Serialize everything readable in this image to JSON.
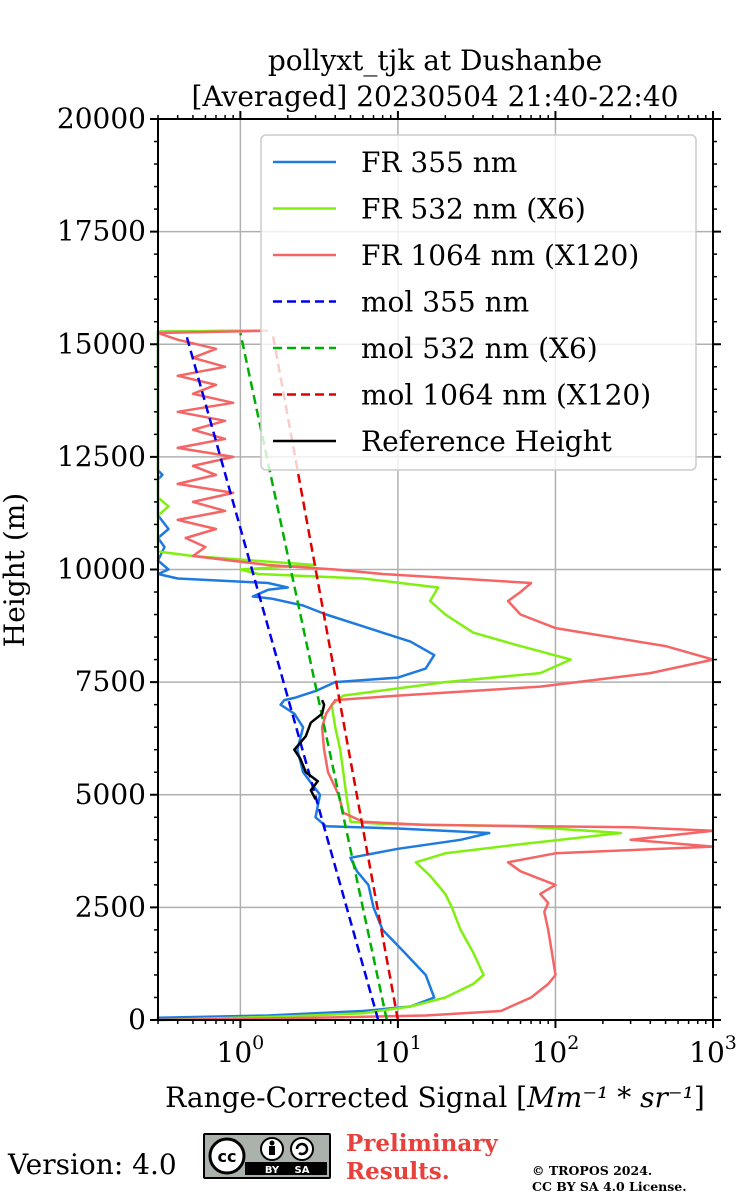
{
  "chart_data": {
    "type": "line",
    "title_line1": "pollyxt_tjk at Dushanbe",
    "title_line2": "[Averaged] 20230504 21:40-22:40",
    "xlabel_text": "Range-Corrected Signal [",
    "xlabel_math": "Mm⁻¹ * sr⁻¹",
    "xlabel_end": "]",
    "ylabel": "Height (m)",
    "xscale": "log",
    "xlim": [
      0.3,
      1000
    ],
    "ylim": [
      0,
      20000
    ],
    "x_tick_labels": [
      {
        "value": 1,
        "base": "10",
        "exp": "0"
      },
      {
        "value": 10,
        "base": "10",
        "exp": "1"
      },
      {
        "value": 100,
        "base": "10",
        "exp": "2"
      },
      {
        "value": 1000,
        "base": "10",
        "exp": "3"
      }
    ],
    "y_ticks": [
      0,
      2500,
      5000,
      7500,
      10000,
      12500,
      15000,
      17500,
      20000
    ],
    "grid": true,
    "legend_position": "top-right",
    "series": [
      {
        "name": "FR 355 nm",
        "color": "#1f7ae0",
        "dash": "solid",
        "points": [
          [
            0.3,
            0
          ],
          [
            0.3,
            50
          ],
          [
            1.5,
            100
          ],
          [
            6,
            200
          ],
          [
            12,
            300
          ],
          [
            17,
            500
          ],
          [
            15,
            1000
          ],
          [
            11,
            1500
          ],
          [
            8,
            2000
          ],
          [
            7,
            2500
          ],
          [
            6.5,
            3000
          ],
          [
            5.5,
            3300
          ],
          [
            5,
            3600
          ],
          [
            10,
            3800
          ],
          [
            25,
            4000
          ],
          [
            38,
            4150
          ],
          [
            10,
            4250
          ],
          [
            3.5,
            4300
          ],
          [
            3,
            4500
          ],
          [
            3.2,
            5000
          ],
          [
            2.5,
            5500
          ],
          [
            2.3,
            6000
          ],
          [
            2.5,
            6500
          ],
          [
            2.2,
            6800
          ],
          [
            1.8,
            7000
          ],
          [
            1.9,
            7100
          ],
          [
            2.2,
            7150
          ],
          [
            3,
            7300
          ],
          [
            4,
            7500
          ],
          [
            10,
            7600
          ],
          [
            15,
            7800
          ],
          [
            17,
            8100
          ],
          [
            12,
            8400
          ],
          [
            6.5,
            8700
          ],
          [
            3.5,
            9000
          ],
          [
            2.5,
            9200
          ],
          [
            1.6,
            9350
          ],
          [
            1.2,
            9400
          ],
          [
            1.5,
            9550
          ],
          [
            2,
            9600
          ],
          [
            1.5,
            9700
          ],
          [
            0.4,
            9800
          ],
          [
            0.3,
            9900
          ],
          [
            0.35,
            10000
          ],
          [
            0.3,
            10200
          ],
          [
            0.33,
            10500
          ],
          [
            0.3,
            10700
          ],
          [
            0.35,
            10900
          ],
          [
            0.3,
            11200
          ],
          [
            0.3,
            12000
          ],
          [
            0.32,
            12100
          ],
          [
            0.3,
            12200
          ],
          [
            0.3,
            15280
          ],
          [
            1.5,
            15300
          ]
        ]
      },
      {
        "name": "FR 532 nm (X6)",
        "color": "#80f010",
        "dash": "solid",
        "points": [
          [
            0.3,
            0
          ],
          [
            2,
            80
          ],
          [
            6,
            150
          ],
          [
            12,
            300
          ],
          [
            20,
            500
          ],
          [
            30,
            800
          ],
          [
            35,
            1000
          ],
          [
            30,
            1500
          ],
          [
            25,
            2000
          ],
          [
            22,
            2500
          ],
          [
            20,
            2800
          ],
          [
            16,
            3200
          ],
          [
            13,
            3500
          ],
          [
            20,
            3700
          ],
          [
            60,
            3900
          ],
          [
            260,
            4150
          ],
          [
            60,
            4300
          ],
          [
            8,
            4350
          ],
          [
            5,
            4400
          ],
          [
            4.7,
            5000
          ],
          [
            4.5,
            5500
          ],
          [
            4.3,
            6000
          ],
          [
            4,
            6500
          ],
          [
            3.8,
            7000
          ],
          [
            4.5,
            7200
          ],
          [
            20,
            7500
          ],
          [
            80,
            7700
          ],
          [
            125,
            8000
          ],
          [
            60,
            8300
          ],
          [
            30,
            8600
          ],
          [
            20,
            9000
          ],
          [
            16,
            9300
          ],
          [
            18,
            9600
          ],
          [
            6,
            9800
          ],
          [
            1.3,
            9900
          ],
          [
            1,
            10000
          ],
          [
            3,
            10100
          ],
          [
            1.2,
            10200
          ],
          [
            0.5,
            10300
          ],
          [
            0.3,
            10400
          ],
          [
            0.3,
            11200
          ],
          [
            0.35,
            11400
          ],
          [
            0.3,
            11600
          ],
          [
            0.3,
            15280
          ],
          [
            1.2,
            15300
          ]
        ]
      },
      {
        "name": "FR 1064 nm (X120)",
        "color": "#f56565",
        "dash": "solid",
        "points": [
          [
            0.3,
            0
          ],
          [
            3,
            50
          ],
          [
            15,
            100
          ],
          [
            45,
            200
          ],
          [
            70,
            500
          ],
          [
            90,
            800
          ],
          [
            100,
            1000
          ],
          [
            95,
            1500
          ],
          [
            90,
            2000
          ],
          [
            85,
            2400
          ],
          [
            90,
            2600
          ],
          [
            80,
            2800
          ],
          [
            100,
            3000
          ],
          [
            60,
            3300
          ],
          [
            50,
            3500
          ],
          [
            100,
            3700
          ],
          [
            1000,
            3850
          ],
          [
            300,
            4000
          ],
          [
            1000,
            4200
          ],
          [
            300,
            4280
          ],
          [
            15,
            4330
          ],
          [
            6,
            4400
          ],
          [
            4.5,
            4600
          ],
          [
            4.2,
            5000
          ],
          [
            3.6,
            5500
          ],
          [
            3.4,
            6000
          ],
          [
            3.3,
            6500
          ],
          [
            3.5,
            6800
          ],
          [
            4,
            7100
          ],
          [
            10,
            7200
          ],
          [
            80,
            7400
          ],
          [
            400,
            7700
          ],
          [
            1000,
            8000
          ],
          [
            500,
            8300
          ],
          [
            100,
            8700
          ],
          [
            60,
            9000
          ],
          [
            50,
            9300
          ],
          [
            60,
            9500
          ],
          [
            70,
            9700
          ],
          [
            8,
            9900
          ],
          [
            4,
            10000
          ],
          [
            1.5,
            10100
          ],
          [
            0.5,
            10300
          ],
          [
            0.6,
            10500
          ],
          [
            0.45,
            10700
          ],
          [
            0.7,
            10900
          ],
          [
            0.4,
            11100
          ],
          [
            0.8,
            11300
          ],
          [
            0.5,
            11500
          ],
          [
            0.9,
            11700
          ],
          [
            0.4,
            11900
          ],
          [
            0.7,
            12100
          ],
          [
            0.5,
            12300
          ],
          [
            0.9,
            12500
          ],
          [
            0.4,
            12700
          ],
          [
            0.8,
            12900
          ],
          [
            0.5,
            13100
          ],
          [
            0.8,
            13300
          ],
          [
            0.4,
            13500
          ],
          [
            0.9,
            13700
          ],
          [
            0.5,
            13900
          ],
          [
            0.7,
            14100
          ],
          [
            0.4,
            14300
          ],
          [
            0.8,
            14500
          ],
          [
            0.5,
            14700
          ],
          [
            0.7,
            14900
          ],
          [
            0.4,
            15100
          ],
          [
            0.3,
            15250
          ],
          [
            1.5,
            15300
          ]
        ]
      },
      {
        "name": "mol 355 nm",
        "color": "#0000ee",
        "dash": "dashed",
        "points": [
          [
            7.5,
            0
          ],
          [
            0.45,
            15250
          ]
        ]
      },
      {
        "name": "mol 532 nm (X6)",
        "color": "#00b000",
        "dash": "dashed",
        "points": [
          [
            8.5,
            0
          ],
          [
            1,
            15250
          ]
        ]
      },
      {
        "name": "mol 1064 nm (X120)",
        "color": "#e00000",
        "dash": "dashed",
        "points": [
          [
            10,
            0
          ],
          [
            1.6,
            15250
          ]
        ]
      },
      {
        "name": "Reference Height",
        "color": "#000000",
        "dash": "solid",
        "points": [
          [
            3,
            4900
          ],
          [
            2.8,
            5100
          ],
          [
            3.1,
            5300
          ],
          [
            2.6,
            5500
          ],
          [
            2.4,
            5800
          ],
          [
            2.2,
            6000
          ],
          [
            2.6,
            6300
          ],
          [
            2.8,
            6600
          ],
          [
            3.3,
            6800
          ],
          [
            3.4,
            7000
          ],
          [
            3.3,
            7100
          ]
        ]
      }
    ]
  },
  "footer": {
    "version_text": "Version: 4.0",
    "cc_label_by": "BY",
    "cc_label_sa": "SA",
    "cc_mark": "cc",
    "preliminary_line1": "Preliminary",
    "preliminary_line2": "Results.",
    "copyright_line1": "© TROPOS 2024.",
    "copyright_line2": "CC BY SA 4.0 License."
  }
}
